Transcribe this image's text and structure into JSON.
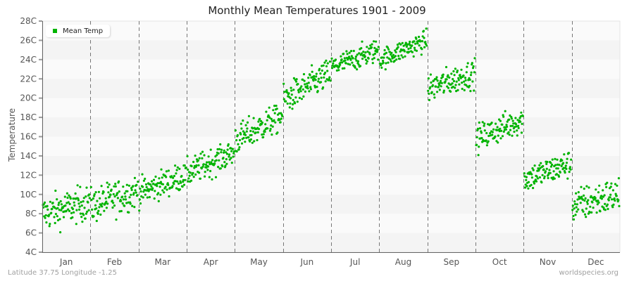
{
  "title": "Monthly Mean Temperatures 1901 - 2009",
  "footer": {
    "location": "Latitude 37.75 Longitude -1.25",
    "source": "worldspecies.org"
  },
  "colors": {
    "point": "#00b300",
    "band_dark": "#f4f4f4",
    "band_light": "#fafafa",
    "axis": "#666666",
    "divider": "#777777"
  },
  "chart_data": {
    "type": "scatter",
    "title": "Monthly Mean Temperatures 1901 - 2009",
    "xlabel": "",
    "ylabel": "Temperature",
    "ylim": [
      4,
      28
    ],
    "yticks": [
      "4C",
      "6C",
      "8C",
      "10C",
      "12C",
      "14C",
      "16C",
      "18C",
      "20C",
      "22C",
      "24C",
      "26C",
      "28C"
    ],
    "categories": [
      "Jan",
      "Feb",
      "Mar",
      "Apr",
      "May",
      "Jun",
      "Jul",
      "Aug",
      "Sep",
      "Oct",
      "Nov",
      "Dec"
    ],
    "legend": [
      {
        "name": "Mean Temp",
        "color": "#00b300"
      }
    ],
    "legend_position": "top-left",
    "grid": "alternating horizontal bands, dashed vertical month dividers",
    "points_per_month": 109,
    "series": [
      {
        "name": "Mean Temp",
        "monthly_summary": [
          {
            "month": "Jan",
            "start": 8.0,
            "end": 9.2,
            "spread": 1.5,
            "min": 5.5,
            "max": 11.0
          },
          {
            "month": "Feb",
            "start": 8.8,
            "end": 10.4,
            "spread": 1.5,
            "min": 5.8,
            "max": 11.7
          },
          {
            "month": "Mar",
            "start": 10.2,
            "end": 12.0,
            "spread": 1.2,
            "min": 8.3,
            "max": 13.0
          },
          {
            "month": "Apr",
            "start": 12.2,
            "end": 14.4,
            "spread": 1.2,
            "min": 11.0,
            "max": 15.2
          },
          {
            "month": "May",
            "start": 15.6,
            "end": 18.2,
            "spread": 1.3,
            "min": 14.2,
            "max": 19.2
          },
          {
            "month": "Jun",
            "start": 19.8,
            "end": 22.6,
            "spread": 1.3,
            "min": 18.8,
            "max": 23.9
          },
          {
            "month": "Jul",
            "start": 23.2,
            "end": 25.0,
            "spread": 1.0,
            "min": 22.2,
            "max": 26.4
          },
          {
            "month": "Aug",
            "start": 24.0,
            "end": 26.0,
            "spread": 0.9,
            "min": 22.4,
            "max": 27.4
          },
          {
            "month": "Sep",
            "start": 21.0,
            "end": 22.6,
            "spread": 1.2,
            "min": 19.8,
            "max": 24.6
          },
          {
            "month": "Oct",
            "start": 15.8,
            "end": 17.8,
            "spread": 1.2,
            "min": 13.6,
            "max": 19.6
          },
          {
            "month": "Nov",
            "start": 11.6,
            "end": 13.2,
            "spread": 1.2,
            "min": 10.2,
            "max": 15.0
          },
          {
            "month": "Dec",
            "start": 8.8,
            "end": 10.0,
            "spread": 1.5,
            "min": 5.7,
            "max": 12.0
          }
        ]
      }
    ]
  }
}
